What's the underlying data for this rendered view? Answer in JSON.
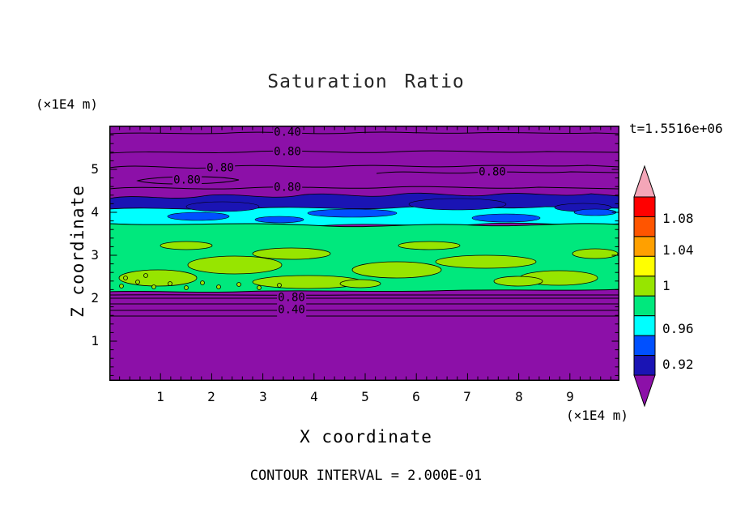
{
  "title": "Saturation Ratio",
  "time_label": "t=1.5516e+06",
  "axes": {
    "x": {
      "label": "X coordinate",
      "unit": "(×1E4 m)",
      "ticks": [
        "1",
        "2",
        "3",
        "4",
        "5",
        "6",
        "7",
        "8",
        "9"
      ]
    },
    "y": {
      "label": "Z coordinate",
      "unit": "(×1E4 m)",
      "ticks": [
        "5",
        "4",
        "3",
        "2",
        "1"
      ]
    }
  },
  "footer": {
    "contour_interval": "CONTOUR INTERVAL = 2.000E-01"
  },
  "palette": {
    "purple": "#8C10A8",
    "navy": "#1A14B4",
    "blue": "#0050FF",
    "cyan": "#00FFFF",
    "green": "#00E87D",
    "green_yellow": "#97E500",
    "pink": "#F4A6B8"
  },
  "colorbar": {
    "labels": [
      "1.08",
      "1.04",
      "1",
      "0.96",
      "0.92"
    ],
    "segment_colors_top_to_bottom": [
      "#FF0000",
      "#FF5500",
      "#FFA000",
      "#FFFF00",
      "#97E500",
      "#00E87D",
      "#00FFFF",
      "#0050FF",
      "#1A14B4"
    ],
    "arrow_top_color": "#F4A6B8",
    "arrow_bottom_color": "#8C10A8"
  },
  "contour_labels": [
    {
      "text": "0.40"
    },
    {
      "text": "0.80"
    },
    {
      "text": "0.80"
    },
    {
      "text": "0.80"
    },
    {
      "text": "0.80"
    },
    {
      "text": "0.80"
    },
    {
      "text": "0.80"
    },
    {
      "text": "0.40"
    }
  ],
  "chart_data": {
    "type": "heatmap",
    "title": "Saturation Ratio",
    "xlabel": "X coordinate (×1E4 m)",
    "ylabel": "Z coordinate (×1E4 m)",
    "xlim": [
      0,
      9.9
    ],
    "ylim": [
      0,
      6
    ],
    "x_ticks": [
      1,
      2,
      3,
      4,
      5,
      6,
      7,
      8,
      9
    ],
    "y_ticks": [
      1,
      2,
      3,
      4,
      5
    ],
    "time_annotation": "t=1.5516e+06",
    "contour_interval": 0.2,
    "colorbar_tick_values": [
      1.08,
      1.04,
      1.0,
      0.96,
      0.92
    ],
    "labeled_contour_lines": [
      {
        "value": 0.4,
        "z_approx": 5.9,
        "x_approx": 3.5
      },
      {
        "value": 0.8,
        "z_approx": 5.4,
        "x_approx": 3.5
      },
      {
        "value": 0.8,
        "z_approx": 5.0,
        "x_approx": 2.1
      },
      {
        "value": 0.8,
        "z_approx": 4.7,
        "x_approx": 1.5
      },
      {
        "value": 0.8,
        "z_approx": 4.9,
        "x_approx": 7.4
      },
      {
        "value": 0.8,
        "z_approx": 4.55,
        "x_approx": 3.5
      },
      {
        "value": 0.8,
        "z_approx": 1.95,
        "x_approx": 3.5
      },
      {
        "value": 0.4,
        "z_approx": 1.75,
        "x_approx": 3.5
      }
    ],
    "bands_top_to_bottom": [
      {
        "z_range": [
          4.4,
          6.0
        ],
        "color": "#8C10A8",
        "meaning": "low saturation (< 0.92) with 0.4/0.8 contour lines"
      },
      {
        "z_range": [
          4.05,
          4.45
        ],
        "color": "#1A14B4",
        "meaning": "~0.92 band, wavy"
      },
      {
        "z_range": [
          3.85,
          4.15
        ],
        "color": "#00FFFF",
        "meaning": "~0.96 band with blue patches"
      },
      {
        "z_range": [
          2.05,
          3.95
        ],
        "color": "#00E87D",
        "meaning": "~1.0 saturated zone"
      },
      {
        "z_range": [
          2.1,
          3.3
        ],
        "color": "#97E500",
        "meaning": "patches slightly above 1.0 within saturated zone"
      },
      {
        "z_range": [
          0.0,
          2.0
        ],
        "color": "#8C10A8",
        "meaning": "low saturation (< 0.92) with 0.4/0.8 contour lines near z=2"
      }
    ],
    "legend_position": "right colorbar with top (pink) and bottom (purple) overflow arrows",
    "grid": false
  }
}
